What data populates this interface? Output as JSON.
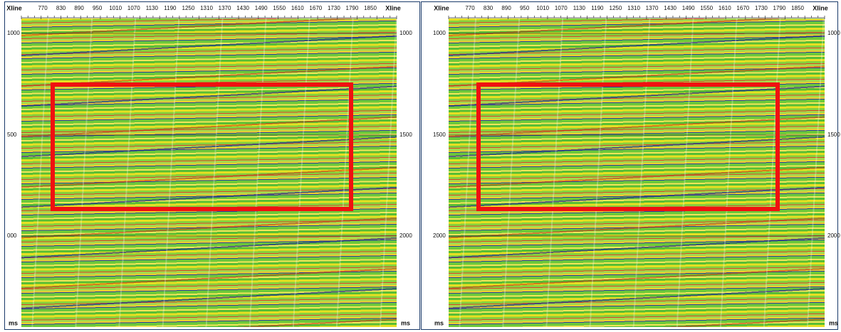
{
  "panels": [
    {
      "header": {
        "left": "Xline",
        "ticks": [
          770,
          830,
          890,
          950,
          1010,
          1070,
          1130,
          1190,
          1250,
          1310,
          1370,
          1430,
          1490,
          1550,
          1610,
          1670,
          1730,
          1790,
          1850
        ],
        "right": "Xline"
      },
      "left_axis": [
        "1000",
        "500",
        "000"
      ],
      "right_axis": [
        "1000",
        "1500",
        "2000"
      ],
      "unit_left": "ms",
      "unit_right": "ms"
    },
    {
      "header": {
        "left": "Xline",
        "ticks": [
          770,
          830,
          890,
          950,
          1010,
          1070,
          1130,
          1190,
          1250,
          1310,
          1370,
          1430,
          1490,
          1550,
          1610,
          1670,
          1730,
          1790,
          1850
        ],
        "right": "Xline"
      },
      "left_axis": [
        "1000",
        "1500",
        "2000"
      ],
      "right_axis": [
        "1000",
        "1500",
        "2000"
      ],
      "unit_left": "ms",
      "unit_right": "ms"
    }
  ]
}
